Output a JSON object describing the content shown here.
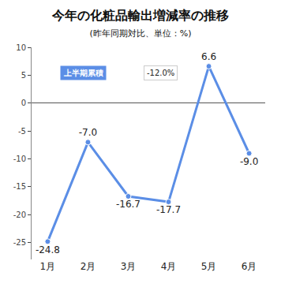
{
  "chart_data": {
    "type": "line",
    "title": "今年の化粧品輸出増減率の推移",
    "subtitle": "(昨年同期対比、単位：%)",
    "categories": [
      "1月",
      "2月",
      "3月",
      "4月",
      "5月",
      "6月"
    ],
    "values": [
      -24.8,
      -7.0,
      -16.7,
      -17.7,
      6.6,
      -9.0
    ],
    "value_labels": [
      "-24.8",
      "-7.0",
      "-16.7",
      "-17.7",
      "6.6",
      "-9.0"
    ],
    "data_labels": true,
    "color": "#5b8ee6",
    "marker": "circle",
    "ylim": [
      -28,
      10
    ],
    "yticks": [
      -25,
      -20,
      -15,
      -10,
      -5,
      0,
      5,
      10
    ],
    "grid": false,
    "summary": {
      "label": "上半期累積",
      "value": -12.0,
      "value_label": "-12.0%"
    }
  }
}
